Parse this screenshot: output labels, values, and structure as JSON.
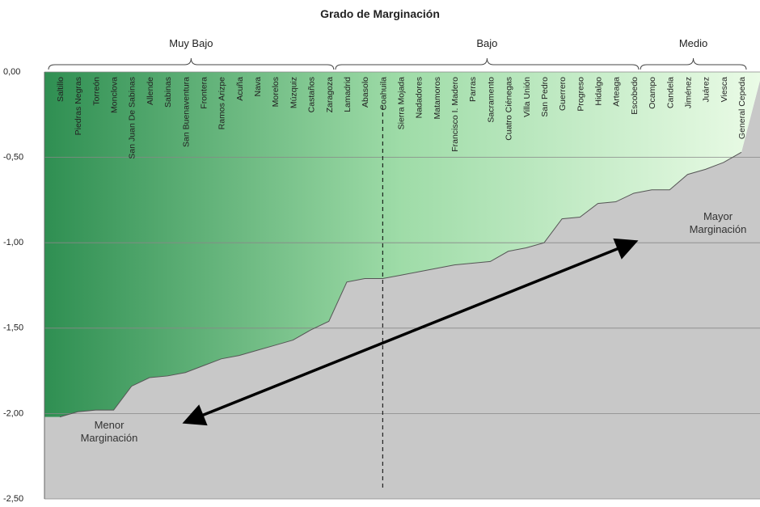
{
  "chart_data": {
    "type": "area",
    "subtitle": "Grado de Marginación",
    "categories": [
      "Saltillo",
      "Piedras Negras",
      "Torreón",
      "Monclova",
      "San Juan De Sabinas",
      "Allende",
      "Sabinas",
      "San Buenaventura",
      "Frontera",
      "Ramos Arizpe",
      "Acuña",
      "Nava",
      "Morelos",
      "Múzquiz",
      "Castaños",
      "Zaragoza",
      "Lamadrid",
      "Abasolo",
      "Coahuila",
      "Sierra Mojada",
      "Nadadores",
      "Matamoros",
      "Francisco I. Madero",
      "Parras",
      "Sacramento",
      "Cuatro Ciénegas",
      "Villa Unión",
      "San Pedro",
      "Guerrero",
      "Progreso",
      "Hidalgo",
      "Arteaga",
      "Escobedo",
      "Ocampo",
      "Candela",
      "Jiménez",
      "Juárez",
      "Viesca",
      "General Cepeda"
    ],
    "values": [
      -2.02,
      -1.99,
      -1.98,
      -1.98,
      -1.84,
      -1.79,
      -1.78,
      -1.76,
      -1.72,
      -1.68,
      -1.66,
      -1.63,
      -1.6,
      -1.57,
      -1.51,
      -1.46,
      -1.23,
      -1.21,
      -1.21,
      -1.19,
      -1.17,
      -1.15,
      -1.13,
      -1.12,
      -1.11,
      -1.05,
      -1.03,
      -1.0,
      -0.86,
      -0.85,
      -0.77,
      -0.76,
      -0.71,
      -0.69,
      -0.69,
      -0.6,
      -0.57,
      -0.53,
      -0.47
    ],
    "groups": [
      "Muy Bajo",
      "Bajo",
      "Medio"
    ],
    "annotations": [
      [
        "Menor",
        "Marginación"
      ],
      [
        "Mayor",
        "Marginación"
      ]
    ],
    "ylim": [
      -2.5,
      0
    ],
    "yticks": [
      {
        "value": 0,
        "label": "0,00"
      },
      {
        "value": -0.5,
        "label": "-0,50"
      },
      {
        "value": -1,
        "label": "-1,00"
      },
      {
        "value": -1.5,
        "label": "-1,50"
      },
      {
        "value": -2,
        "label": "-2,00"
      },
      {
        "value": -2.5,
        "label": "-2,50"
      }
    ],
    "grid": true
  }
}
